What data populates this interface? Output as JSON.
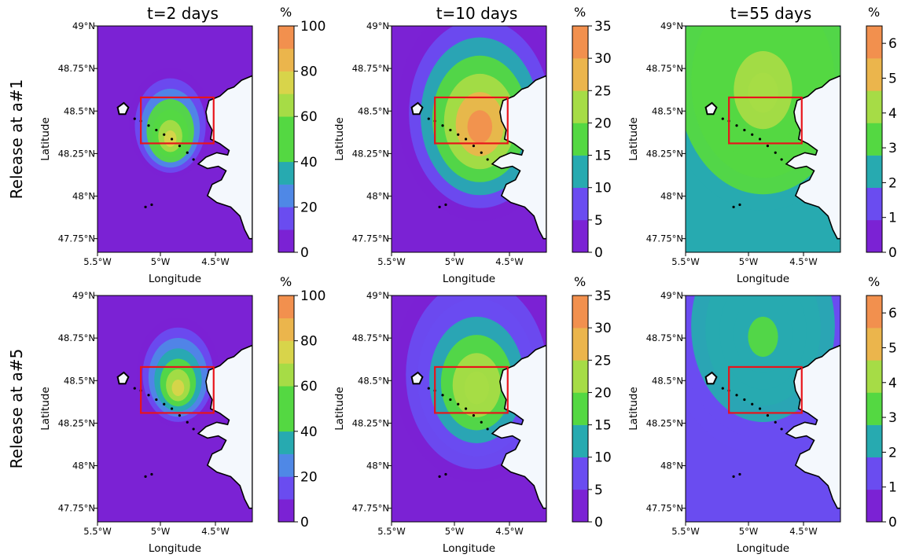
{
  "column_titles": [
    "t=2 days",
    "t=10 days",
    "t=55 days"
  ],
  "row_titles": [
    "Release at a#1",
    "Release at a#5"
  ],
  "colors": {
    "ocean_base": "#7b22d4",
    "land": "#f4f8fd",
    "coast": "#000000",
    "box": "#e8141b",
    "levels": [
      "#7b22d4",
      "#6a4cf0",
      "#4f88e6",
      "#27aab0",
      "#54d842",
      "#a6dc46",
      "#d8d44a",
      "#ebb54c",
      "#f2904e"
    ]
  },
  "chart_data": [
    {
      "type": "heatmap",
      "panel": "a#1 t=2 days",
      "title": "t=2 days",
      "xlabel": "Longitude",
      "ylabel": "Latitude",
      "xlim": [
        -5.5,
        -4.5
      ],
      "ylim": [
        47.67,
        49.0
      ],
      "x_ticks": [
        "5.5°W",
        "5°W",
        "4.5°W"
      ],
      "y_ticks": [
        "47.75°N",
        "48°N",
        "48.25°N",
        "48.5°N",
        "48.75°N",
        "49°N"
      ],
      "colorbar": {
        "unit": "%",
        "range": [
          0,
          100
        ],
        "ticks": [
          "0",
          "20",
          "40",
          "60",
          "80",
          "100"
        ],
        "levels": 10
      },
      "plume": {
        "center_lon": -5.03,
        "center_lat": 48.43,
        "max_value": 78,
        "background_value": 2
      },
      "release_box": {
        "lon": [
          -5.22,
          -4.75
        ],
        "lat": [
          48.31,
          48.58
        ]
      }
    },
    {
      "type": "heatmap",
      "panel": "a#1 t=10 days",
      "title": "t=10 days",
      "xlabel": "Longitude",
      "ylabel": "Latitude",
      "xlim": [
        -5.5,
        -4.5
      ],
      "ylim": [
        47.67,
        49.0
      ],
      "x_ticks": [
        "5.5°W",
        "5°W",
        "4.5°W"
      ],
      "y_ticks": [
        "47.75°N",
        "48°N",
        "48.25°N",
        "48.5°N",
        "48.75°N",
        "49°N"
      ],
      "colorbar": {
        "unit": "%",
        "range": [
          0,
          35
        ],
        "ticks": [
          "0",
          "5",
          "10",
          "15",
          "20",
          "25",
          "30",
          "35"
        ],
        "levels": 7
      },
      "plume": {
        "center_lon": -4.93,
        "center_lat": 48.5,
        "max_value": 32,
        "background_value": 2
      },
      "release_box": {
        "lon": [
          -5.22,
          -4.75
        ],
        "lat": [
          48.31,
          48.58
        ]
      }
    },
    {
      "type": "heatmap",
      "panel": "a#1 t=55 days",
      "title": "t=55 days",
      "xlabel": "Longitude",
      "ylabel": "Latitude",
      "xlim": [
        -5.5,
        -4.5
      ],
      "ylim": [
        47.67,
        49.0
      ],
      "x_ticks": [
        "5.5°W",
        "5°W",
        "4.5°W"
      ],
      "y_ticks": [
        "47.75°N",
        "48°N",
        "48.25°N",
        "48.5°N",
        "48.75°N",
        "49°N"
      ],
      "colorbar": {
        "unit": "%",
        "range": [
          0,
          6.5
        ],
        "ticks": [
          "0",
          "1",
          "2",
          "3",
          "4",
          "5",
          "6"
        ],
        "levels": 7
      },
      "plume": {
        "center_lon": -5.0,
        "center_lat": 48.7,
        "max_value": 4.3,
        "background_value": 2.5
      },
      "release_box": {
        "lon": [
          -5.22,
          -4.75
        ],
        "lat": [
          48.31,
          48.58
        ]
      }
    },
    {
      "type": "heatmap",
      "panel": "a#5 t=2 days",
      "title": "",
      "xlabel": "Longitude",
      "ylabel": "Latitude",
      "xlim": [
        -5.5,
        -4.5
      ],
      "ylim": [
        47.67,
        49.0
      ],
      "x_ticks": [
        "5.5°W",
        "5°W",
        "4.5°W"
      ],
      "y_ticks": [
        "47.75°N",
        "48°N",
        "48.25°N",
        "48.5°N",
        "48.75°N",
        "49°N"
      ],
      "colorbar": {
        "unit": "%",
        "range": [
          0,
          100
        ],
        "ticks": [
          "0",
          "20",
          "40",
          "60",
          "80",
          "100"
        ],
        "levels": 10
      },
      "plume": {
        "center_lon": -4.98,
        "center_lat": 48.55,
        "max_value": 72,
        "background_value": 2
      },
      "release_box": {
        "lon": [
          -5.22,
          -4.75
        ],
        "lat": [
          48.31,
          48.58
        ]
      }
    },
    {
      "type": "heatmap",
      "panel": "a#5 t=10 days",
      "title": "",
      "xlabel": "Longitude",
      "ylabel": "Latitude",
      "xlim": [
        -5.5,
        -4.5
      ],
      "ylim": [
        47.67,
        49.0
      ],
      "x_ticks": [
        "5.5°W",
        "5°W",
        "4.5°W"
      ],
      "y_ticks": [
        "47.75°N",
        "48°N",
        "48.25°N",
        "48.5°N",
        "48.75°N",
        "49°N"
      ],
      "colorbar": {
        "unit": "%",
        "range": [
          0,
          35
        ],
        "ticks": [
          "0",
          "5",
          "10",
          "15",
          "20",
          "25",
          "30",
          "35"
        ],
        "levels": 7
      },
      "plume": {
        "center_lon": -4.95,
        "center_lat": 48.55,
        "max_value": 24,
        "background_value": 2
      },
      "release_box": {
        "lon": [
          -5.22,
          -4.75
        ],
        "lat": [
          48.31,
          48.58
        ]
      }
    },
    {
      "type": "heatmap",
      "panel": "a#5 t=55 days",
      "title": "",
      "xlabel": "Longitude",
      "ylabel": "Latitude",
      "xlim": [
        -5.5,
        -4.5
      ],
      "ylim": [
        47.67,
        49.0
      ],
      "x_ticks": [
        "5.5°W",
        "5°W",
        "4.5°W"
      ],
      "y_ticks": [
        "47.75°N",
        "48°N",
        "48.25°N",
        "48.5°N",
        "48.75°N",
        "49°N"
      ],
      "colorbar": {
        "unit": "%",
        "range": [
          0,
          6.5
        ],
        "ticks": [
          "0",
          "1",
          "2",
          "3",
          "4",
          "5",
          "6"
        ],
        "levels": 7
      },
      "plume": {
        "center_lon": -5.0,
        "center_lat": 48.85,
        "max_value": 3.0,
        "background_value": 1.6
      },
      "release_box": {
        "lon": [
          -5.22,
          -4.75
        ],
        "lat": [
          48.31,
          48.58
        ]
      }
    }
  ]
}
